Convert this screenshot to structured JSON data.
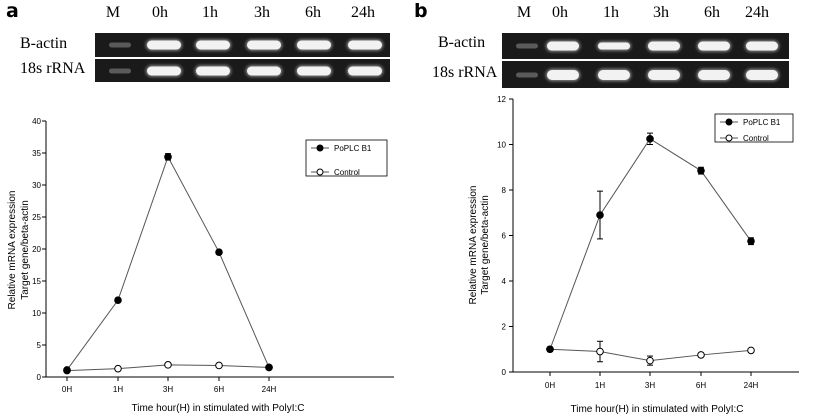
{
  "panels": [
    {
      "letter": "a",
      "gel": {
        "lanes": [
          "M",
          "0h",
          "1h",
          "3h",
          "6h",
          "24h"
        ],
        "rows": [
          "B-actin",
          "18s rRNA"
        ]
      },
      "chart_data": {
        "type": "line",
        "categories": [
          "0H",
          "1H",
          "3H",
          "6H",
          "24H"
        ],
        "series": [
          {
            "name": "PoPLC B1",
            "values": [
              1.1,
              12.0,
              34.4,
              19.5,
              1.5
            ],
            "errors": [
              0.2,
              0.3,
              0.5,
              0.3,
              0.2
            ],
            "marker": "filled"
          },
          {
            "name": "Control",
            "values": [
              1.0,
              1.3,
              1.9,
              1.8,
              1.5
            ],
            "errors": [
              0.2,
              0.2,
              0.2,
              0.2,
              0.2
            ],
            "marker": "open"
          }
        ],
        "ylim": [
          0,
          40
        ],
        "yticks": [
          0,
          5,
          10,
          15,
          20,
          25,
          30,
          35,
          40
        ],
        "xlabel": "Time hour(H) in stimulated with PolyI:C",
        "ylabel": [
          "Relative mRNA expression",
          "Target gene/beta-actin"
        ],
        "legend": "top-right"
      }
    },
    {
      "letter": "b",
      "gel": {
        "lanes": [
          "M",
          "0h",
          "1h",
          "3h",
          "6h",
          "24h"
        ],
        "rows": [
          "B-actin",
          "18s rRNA"
        ]
      },
      "chart_data": {
        "type": "line",
        "categories": [
          "0H",
          "1H",
          "3H",
          "6H",
          "24H"
        ],
        "series": [
          {
            "name": "PoPLC B1",
            "values": [
              1.0,
              6.9,
              10.25,
              8.85,
              5.75
            ],
            "errors": [
              0.1,
              1.05,
              0.25,
              0.15,
              0.15
            ],
            "marker": "filled"
          },
          {
            "name": "Control",
            "values": [
              1.0,
              0.9,
              0.5,
              0.75,
              0.95
            ],
            "errors": [
              0.1,
              0.45,
              0.2,
              0.05,
              0.08
            ],
            "marker": "open"
          }
        ],
        "ylim": [
          0,
          12
        ],
        "yticks": [
          0,
          2,
          4,
          6,
          8,
          10,
          12
        ],
        "xlabel": "Time hour(H) in stimulated with PolyI:C",
        "ylabel": [
          "Relative mRNA expression",
          "Target gene/beta-actin"
        ],
        "legend": "top-right"
      }
    }
  ]
}
